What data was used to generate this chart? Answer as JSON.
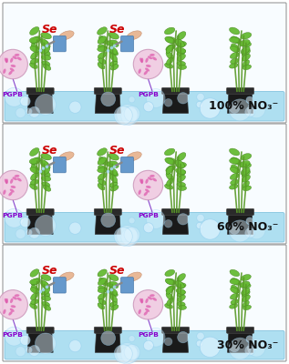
{
  "rows": [
    {
      "label": "100% NO₃⁻"
    },
    {
      "label": "60% NO₃⁻"
    },
    {
      "label": "30% NO₃⁻"
    }
  ],
  "bg_color": "#ffffff",
  "water_color": "#a8ddf0",
  "label_color": "#111111",
  "se_color": "#cc0000",
  "pgpb_color": "#8800cc",
  "pgpb_circle_fill": "#f0c8e0",
  "pgpb_circle_edge": "#cc99bb",
  "sprayer_blue": "#6699cc",
  "sprayer_hand": "#e8b896",
  "plant_stem": "#5a9a28",
  "plant_leaf": "#66bb33",
  "pot_color": "#1a1a1a",
  "label_fontsize": 9
}
